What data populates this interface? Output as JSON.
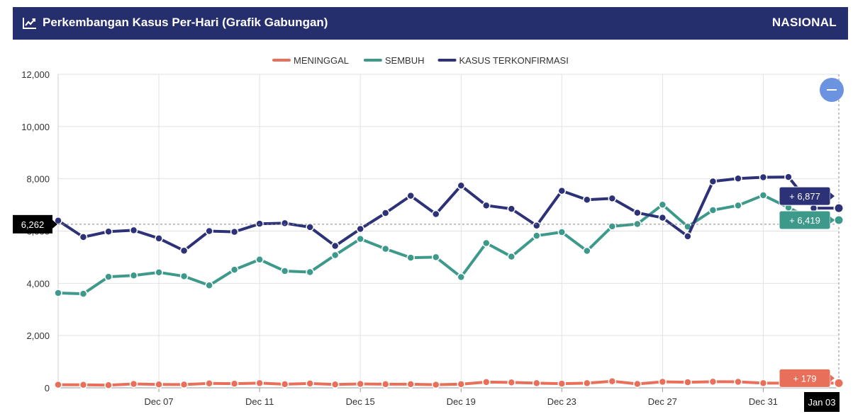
{
  "header": {
    "title": "Perkembangan Kasus Per-Hari (Grafik Gabungan)",
    "region": "NASIONAL",
    "icon": "line-chart-icon"
  },
  "controls": {
    "zoom_out_icon": "minus-icon"
  },
  "chart_data": {
    "type": "line",
    "x": [
      "Dec 03",
      "Dec 04",
      "Dec 05",
      "Dec 06",
      "Dec 07",
      "Dec 08",
      "Dec 09",
      "Dec 10",
      "Dec 11",
      "Dec 12",
      "Dec 13",
      "Dec 14",
      "Dec 15",
      "Dec 16",
      "Dec 17",
      "Dec 18",
      "Dec 19",
      "Dec 20",
      "Dec 21",
      "Dec 22",
      "Dec 23",
      "Dec 24",
      "Dec 25",
      "Dec 26",
      "Dec 27",
      "Dec 28",
      "Dec 29",
      "Dec 30",
      "Dec 31",
      "Jan 01",
      "Jan 02",
      "Jan 03"
    ],
    "x_tick_labels": [
      "Dec 07",
      "Dec 11",
      "Dec 15",
      "Dec 19",
      "Dec 23",
      "Dec 27",
      "Dec 31"
    ],
    "y_tick_labels": [
      "0",
      "2,000",
      "4,000",
      "6,000",
      "8,000",
      "10,000",
      "12,000"
    ],
    "ylim": [
      0,
      12000
    ],
    "grid": true,
    "legend_position": "top-center",
    "series": [
      {
        "name": "MENINGGAL",
        "color": "#e8705a",
        "values": [
          120,
          115,
          100,
          150,
          130,
          125,
          170,
          160,
          180,
          140,
          165,
          130,
          150,
          140,
          140,
          120,
          140,
          220,
          205,
          180,
          160,
          180,
          250,
          150,
          230,
          215,
          235,
          230,
          180,
          180,
          179,
          179
        ]
      },
      {
        "name": "SEMBUH",
        "color": "#3d9a8b",
        "values": [
          3630,
          3600,
          4250,
          4300,
          4420,
          4270,
          3920,
          4520,
          4910,
          4470,
          4430,
          5080,
          5700,
          5320,
          4980,
          5000,
          4240,
          5540,
          5020,
          5820,
          5960,
          5240,
          6180,
          6270,
          7010,
          6170,
          6800,
          6980,
          7370,
          6900,
          6419,
          6419
        ]
      },
      {
        "name": "KASUS TERKONFIRMASI",
        "color": "#2c3178",
        "values": [
          6400,
          5770,
          5980,
          6030,
          5720,
          5250,
          6000,
          5970,
          6280,
          6300,
          6150,
          5430,
          6080,
          6690,
          7350,
          6650,
          7740,
          6980,
          6850,
          6210,
          7540,
          7200,
          7250,
          6700,
          6510,
          5800,
          7900,
          8010,
          8060,
          8070,
          6877,
          6877
        ]
      }
    ],
    "crosshair": {
      "x_label": "Jan 03",
      "y_label": "6,262"
    },
    "tooltips": {
      "KASUS TERKONFIRMASI": "+ 6,877",
      "SEMBUH": "+ 6,419",
      "MENINGGAL": "+ 179"
    }
  }
}
